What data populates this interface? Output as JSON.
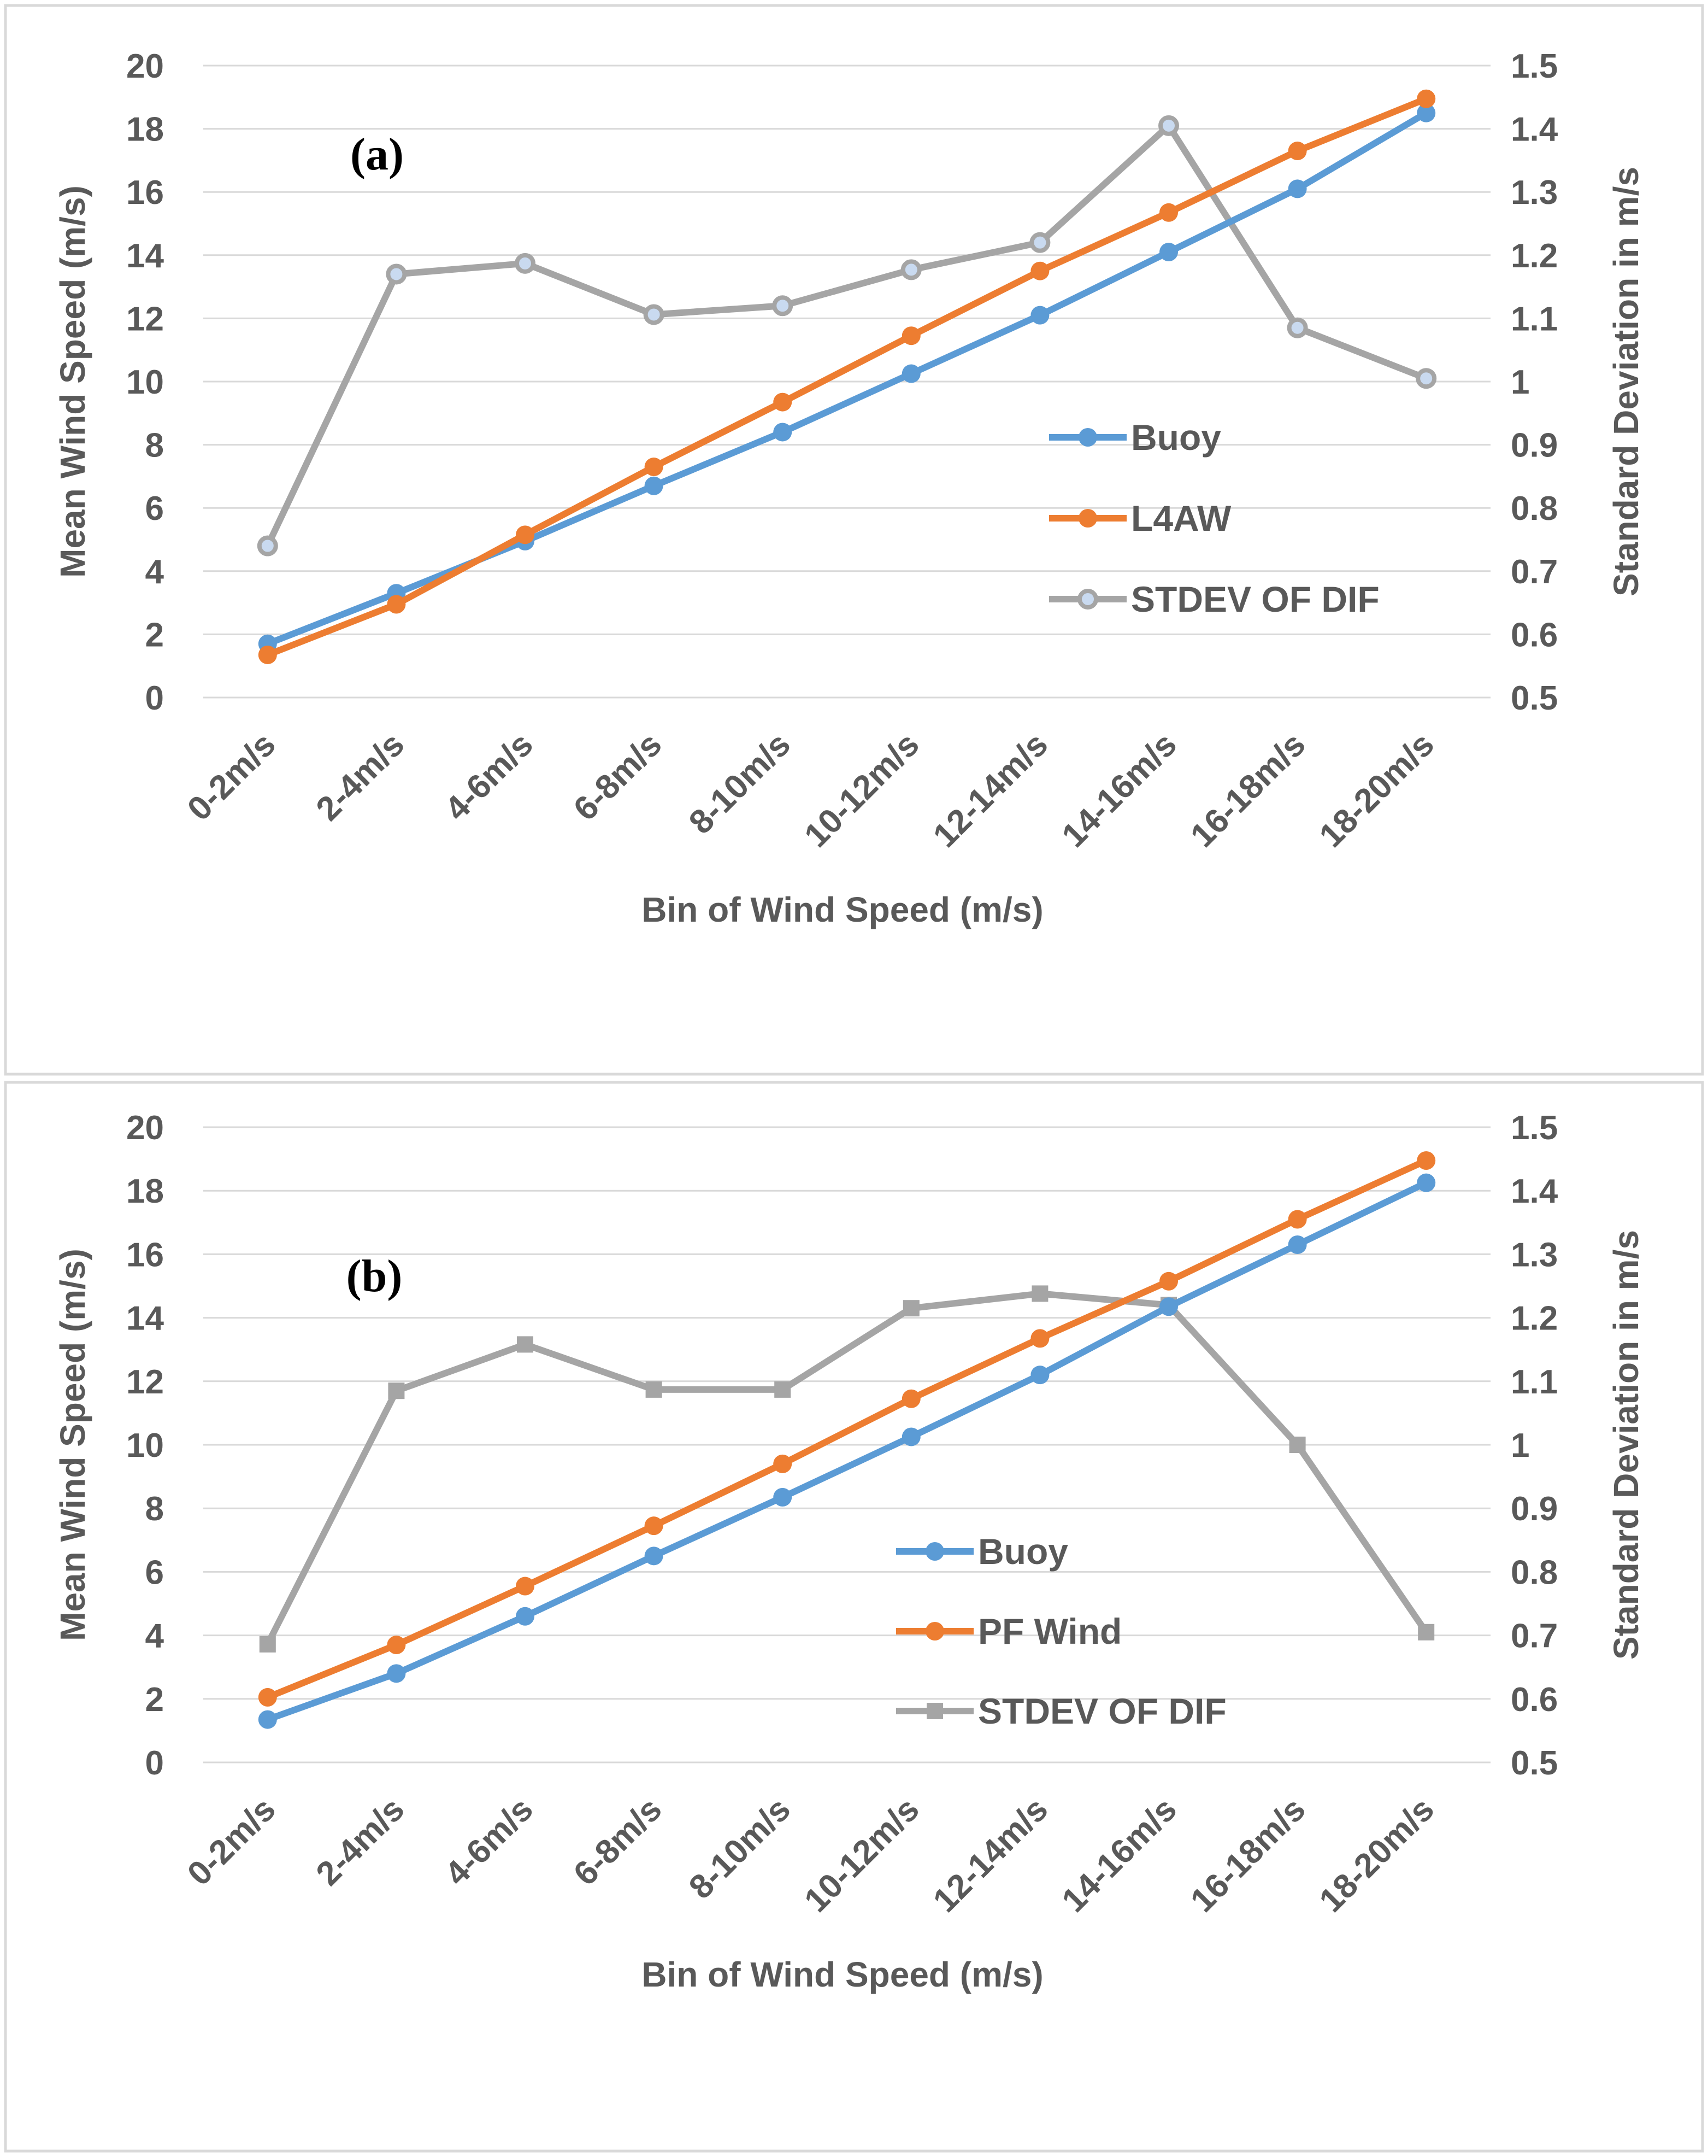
{
  "colors": {
    "buoy": "#5b9bd5",
    "model": "#ed7d31",
    "stdev": "#a5a5a5",
    "text": "#595959",
    "grid": "#d9d9d9"
  },
  "chart_data": [
    {
      "type": "line",
      "panel_label": "(a)",
      "title": "",
      "xlabel": "Bin of Wind Speed (m/s)",
      "ylabel": "Mean Wind Speed (m/s)",
      "y2label": "Standard Deviation in m/s",
      "ylim": [
        0,
        20
      ],
      "y_ticks": [
        "0",
        "2",
        "4",
        "6",
        "8",
        "10",
        "12",
        "14",
        "16",
        "18",
        "20"
      ],
      "y2lim": [
        0.5,
        1.5
      ],
      "y2_ticks": [
        "0.5",
        "0.6",
        "0.7",
        "0.8",
        "0.9",
        "1",
        "1.1",
        "1.2",
        "1.3",
        "1.4",
        "1.5"
      ],
      "categories": [
        "0-2m/s",
        "2-4m/s",
        "4-6m/s",
        "6-8m/s",
        "8-10m/s",
        "10-12m/s",
        "12-14m/s",
        "14-16m/s",
        "16-18m/s",
        "18-20m/s"
      ],
      "legend_position": "right",
      "series": [
        {
          "name": "Buoy",
          "axis": "left",
          "marker": "circle",
          "color": "#5b9bd5",
          "values": [
            1.7,
            3.3,
            4.95,
            6.7,
            8.4,
            10.25,
            12.1,
            14.1,
            16.1,
            18.5
          ]
        },
        {
          "name": "L4AW",
          "axis": "left",
          "marker": "circle",
          "color": "#ed7d31",
          "values": [
            1.35,
            2.95,
            5.15,
            7.3,
            9.35,
            11.45,
            13.5,
            15.35,
            17.3,
            18.95
          ]
        },
        {
          "name": "STDEV OF DIF",
          "axis": "right",
          "marker": "circle",
          "color": "#a5a5a5",
          "values": [
            0.74,
            1.17,
            1.187,
            1.106,
            1.12,
            1.177,
            1.22,
            1.405,
            1.085,
            1.005
          ]
        }
      ]
    },
    {
      "type": "line",
      "panel_label": "(b)",
      "title": "",
      "xlabel": "Bin of Wind Speed (m/s)",
      "ylabel": "Mean Wind Speed (m/s)",
      "y2label": "Standard Deviation in m/s",
      "ylim": [
        0,
        20
      ],
      "y_ticks": [
        "0",
        "2",
        "4",
        "6",
        "8",
        "10",
        "12",
        "14",
        "16",
        "18",
        "20"
      ],
      "y2lim": [
        0.5,
        1.5
      ],
      "y2_ticks": [
        "0.5",
        "0.6",
        "0.7",
        "0.8",
        "0.9",
        "1",
        "1.1",
        "1.2",
        "1.3",
        "1.4",
        "1.5"
      ],
      "categories": [
        "0-2m/s",
        "2-4m/s",
        "4-6m/s",
        "6-8m/s",
        "8-10m/s",
        "10-12m/s",
        "12-14m/s",
        "14-16m/s",
        "16-18m/s",
        "18-20m/s"
      ],
      "legend_position": "center-right",
      "series": [
        {
          "name": "Buoy",
          "axis": "left",
          "marker": "circle",
          "color": "#5b9bd5",
          "values": [
            1.35,
            2.8,
            4.6,
            6.5,
            8.35,
            10.25,
            12.2,
            14.35,
            16.3,
            18.25
          ]
        },
        {
          "name": "PF Wind",
          "axis": "left",
          "marker": "circle",
          "color": "#ed7d31",
          "values": [
            2.05,
            3.7,
            5.55,
            7.45,
            9.4,
            11.45,
            13.35,
            15.15,
            17.1,
            18.95
          ]
        },
        {
          "name": "STDEV OF DIF",
          "axis": "right",
          "marker": "square",
          "color": "#a5a5a5",
          "values": [
            0.686,
            1.085,
            1.158,
            1.087,
            1.087,
            1.215,
            1.238,
            1.22,
            1.0,
            0.705
          ]
        }
      ]
    }
  ]
}
